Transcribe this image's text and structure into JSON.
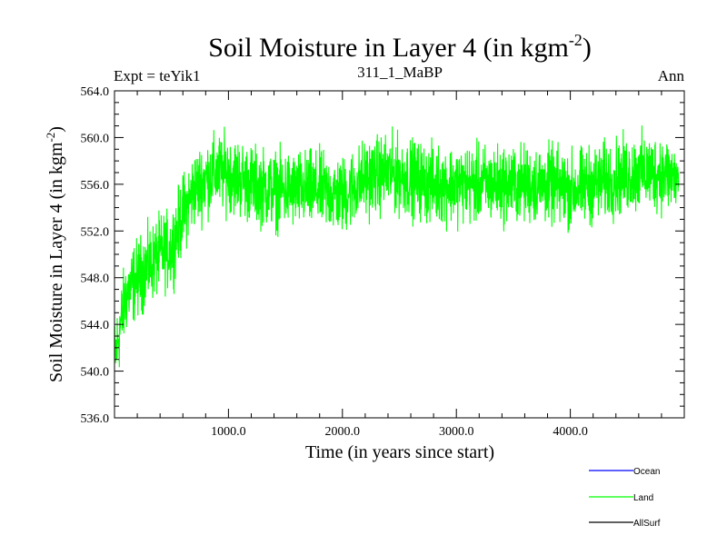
{
  "chart_data": {
    "type": "line",
    "title": "Soil Moisture in Layer 4 (in kgm",
    "title_sup": "-2",
    "title_close": ")",
    "subtitle_left": "Expt = teYik1",
    "subtitle_center": "311_1_MaBP",
    "subtitle_right": "Ann",
    "xlabel": "Time (in years since start)",
    "ylabel": "Soil Moisture in Layer 4 (in kgm",
    "ylabel_sup": "-2",
    "ylabel_close": ")",
    "xlim": [
      0,
      5000
    ],
    "ylim": [
      536.0,
      564.0
    ],
    "x_ticks": [
      1000,
      2000,
      3000,
      4000
    ],
    "x_tick_labels": [
      "1000.0",
      "2000.0",
      "3000.0",
      "4000.0"
    ],
    "y_ticks": [
      536,
      540,
      544,
      548,
      552,
      556,
      560,
      564
    ],
    "y_tick_labels": [
      "536.0",
      "540.0",
      "544.0",
      "548.0",
      "552.0",
      "556.0",
      "560.0",
      "564.0"
    ],
    "legend_position": "bottom-right",
    "grid": false,
    "series": [
      {
        "name": "Ocean",
        "color": "#0000ff",
        "x": [],
        "values": []
      },
      {
        "name": "Land",
        "color": "#00ff00",
        "x": [
          0,
          100,
          200,
          300,
          400,
          500,
          600,
          700,
          800,
          900,
          1000,
          1200,
          1400,
          1600,
          1800,
          2000,
          2200,
          2400,
          2600,
          2800,
          3000,
          3200,
          3400,
          3600,
          3800,
          4000,
          4200,
          4400,
          4600,
          4800,
          4950
        ],
        "values": [
          541.0,
          546.5,
          548.0,
          549.0,
          550.0,
          550.5,
          553.5,
          555.5,
          556.5,
          557.0,
          557.0,
          556.0,
          555.5,
          555.5,
          555.5,
          555.0,
          556.5,
          557.0,
          556.5,
          556.0,
          556.0,
          556.0,
          556.0,
          556.0,
          556.0,
          555.5,
          556.0,
          556.5,
          557.0,
          557.0,
          556.5
        ],
        "noise_amplitude": 3.0
      },
      {
        "name": "AllSurf",
        "color": "#000000",
        "x": [],
        "values": []
      }
    ]
  }
}
